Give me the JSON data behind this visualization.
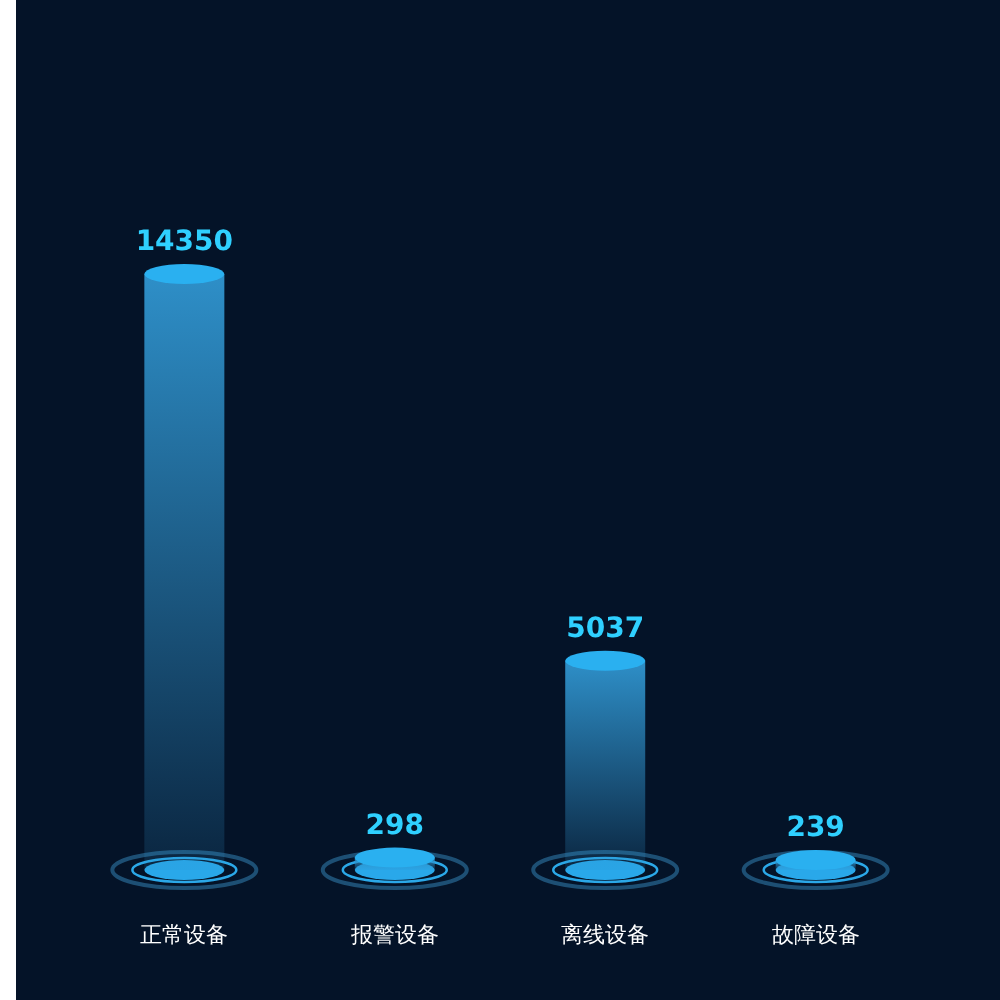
{
  "chart_data": {
    "type": "bar",
    "categories": [
      "正常设备",
      "报警设备",
      "离线设备",
      "故障设备"
    ],
    "values": [
      14350,
      298,
      5037,
      239
    ],
    "color": "#2e8fc8",
    "data_labels": true
  }
}
